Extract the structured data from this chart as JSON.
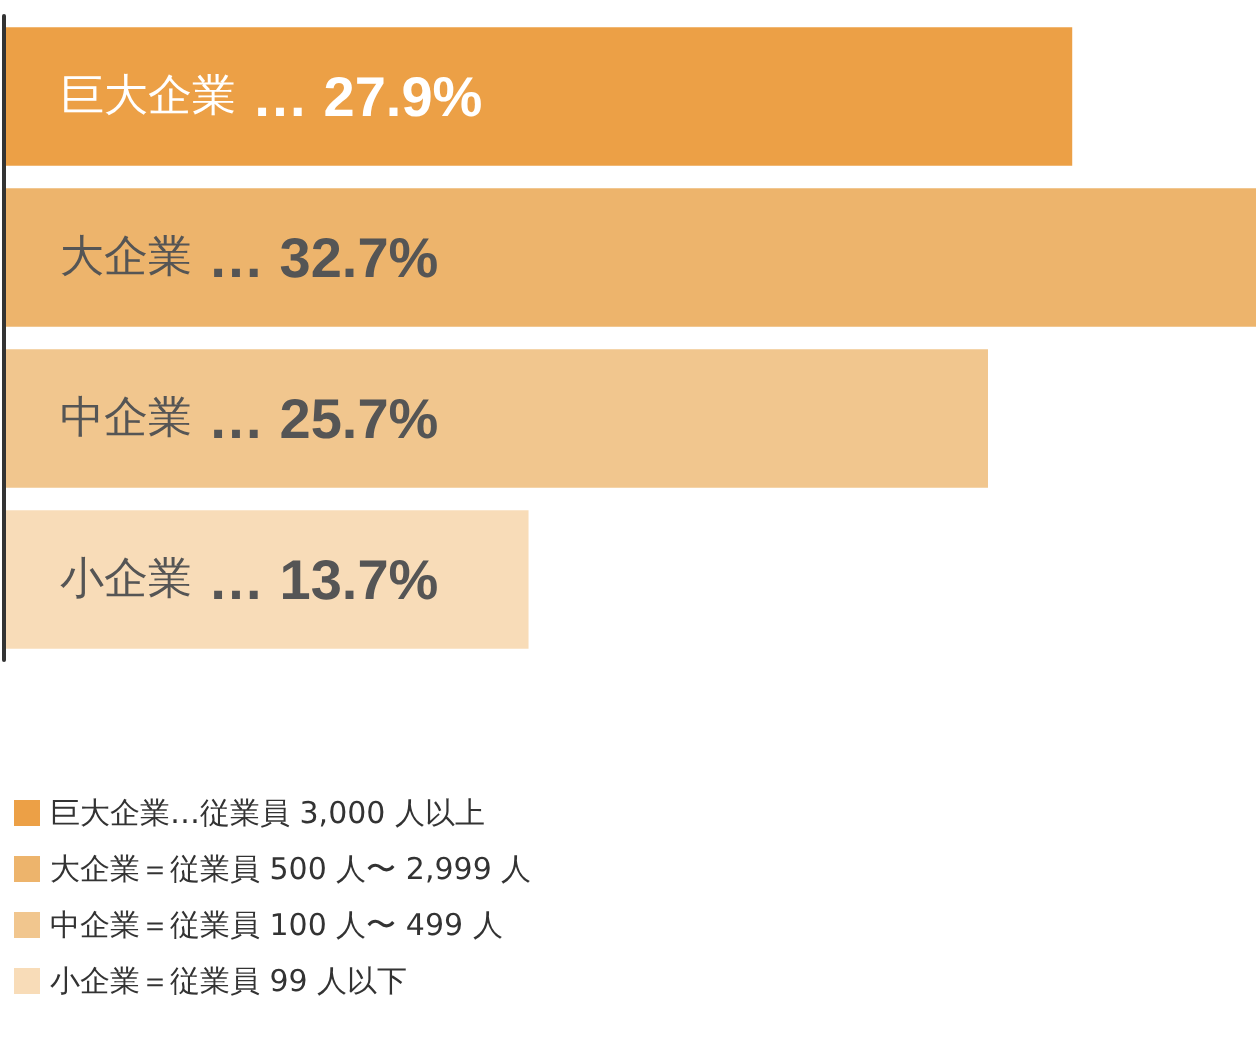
{
  "chart_data": {
    "type": "bar",
    "orientation": "horizontal",
    "stacked": true,
    "categories": [
      "巨大企業",
      "大企業",
      "中企業",
      "小企業"
    ],
    "tick_labels": "y",
    "grid": false,
    "legend": "bottom left",
    "series": [
      {
        "name": "巨大企業…従業員 3,000 人以上",
        "color": "#eca046",
        "values": [
          27.9,
          null,
          null,
          null
        ],
        "value_labels": [
          "… 27.9%",
          null,
          null,
          null
        ]
      },
      {
        "name": "大企業＝従業員 500 人〜 2,999 人",
        "color": "#edb46c",
        "values": [
          null,
          32.7,
          null,
          null
        ],
        "value_labels": [
          null,
          "… 32.7%",
          null,
          null
        ]
      },
      {
        "name": "中企業＝従業員 100 人〜 499 人",
        "color": "#f1c68e",
        "values": [
          null,
          null,
          25.7,
          null
        ],
        "value_labels": [
          null,
          null,
          "… 25.7%",
          null
        ]
      },
      {
        "name": "小企業＝従業員 99 人以下",
        "color": "#f8dcb8",
        "values": [
          null,
          null,
          null,
          13.7
        ],
        "value_labels": [
          null,
          null,
          null,
          "… 13.7%"
        ]
      }
    ]
  }
}
